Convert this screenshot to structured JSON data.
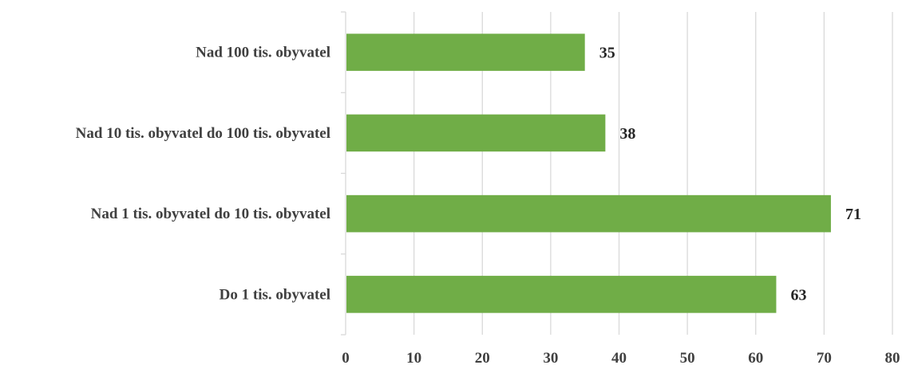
{
  "chart_data": {
    "type": "bar",
    "orientation": "horizontal",
    "categories": [
      "Nad 100 tis. obyvatel",
      "Nad 10 tis. obyvatel do 100 tis. obyvatel",
      "Nad 1 tis. obyvatel do 10 tis. obyvatel",
      "Do 1 tis. obyvatel"
    ],
    "values": [
      35,
      38,
      71,
      63
    ],
    "data_labels": [
      "35",
      "38",
      "71",
      "63"
    ],
    "xlim": [
      0,
      80
    ],
    "x_ticks": [
      0,
      10,
      20,
      30,
      40,
      50,
      60,
      70,
      80
    ],
    "x_tick_labels": [
      "0",
      "10",
      "20",
      "30",
      "40",
      "50",
      "60",
      "70",
      "80"
    ],
    "title": "",
    "xlabel": "",
    "ylabel": "",
    "grid": "vertical",
    "legend": "none",
    "colors": {
      "bar": "#70AD47",
      "grid": "#D9D9D9",
      "axis": "#D9D9D9",
      "text": "#404040"
    }
  }
}
